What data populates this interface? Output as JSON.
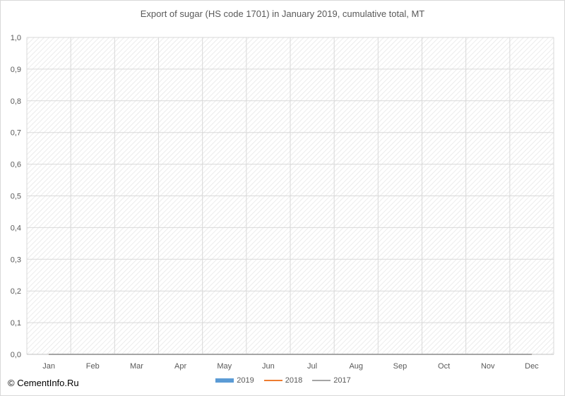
{
  "chart_data": {
    "type": "bar",
    "title": "Export of sugar (HS code 1701)  in January 2019,  cumulative total, MT",
    "categories": [
      "Jan",
      "Feb",
      "Mar",
      "Apr",
      "May",
      "Jun",
      "Jul",
      "Aug",
      "Sep",
      "Oct",
      "Nov",
      "Dec"
    ],
    "series": [
      {
        "name": "2019",
        "kind": "bar",
        "color": "#5b9bd5",
        "values": [
          0,
          null,
          null,
          null,
          null,
          null,
          null,
          null,
          null,
          null,
          null,
          null
        ]
      },
      {
        "name": "2018",
        "kind": "line",
        "color": "#ed7d31",
        "values": [
          0,
          0,
          0,
          0,
          0,
          0,
          0,
          0,
          0,
          0,
          0,
          0
        ]
      },
      {
        "name": "2017",
        "kind": "line",
        "color": "#a5a5a5",
        "values": [
          0,
          0,
          0,
          0,
          0,
          0,
          0,
          0,
          0,
          0,
          0,
          0
        ]
      }
    ],
    "ylim": [
      0,
      1
    ],
    "yticks": [
      "0,0",
      "0,1",
      "0,2",
      "0,3",
      "0,4",
      "0,5",
      "0,6",
      "0,7",
      "0,8",
      "0,9",
      "1,0"
    ],
    "xlabel": "",
    "ylabel": "",
    "grid": true,
    "legend_position": "bottom"
  },
  "watermark": "© CementInfo.Ru"
}
